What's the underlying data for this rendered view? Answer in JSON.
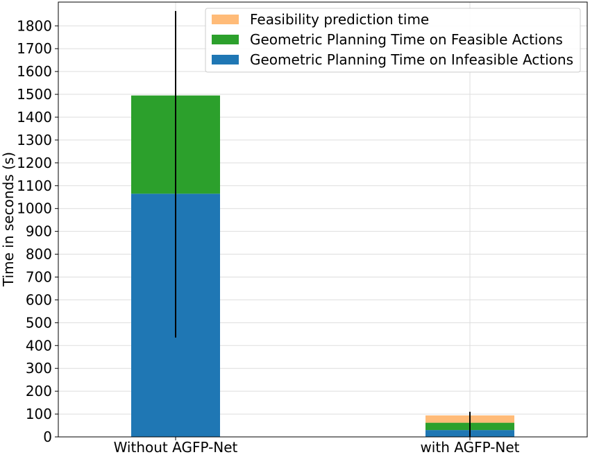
{
  "chart_data": {
    "type": "bar",
    "stacked": true,
    "categories": [
      "Without AGFP-Net",
      "with AGFP-Net"
    ],
    "series": [
      {
        "name": "Geometric Planning Time on Infeasible Actions",
        "color": "#1f77b4",
        "values": [
          1065,
          30
        ]
      },
      {
        "name": "Geometric Planning Time on Feasible Actions",
        "color": "#2ca02c",
        "values": [
          430,
          32
        ]
      },
      {
        "name": "Feasibility prediction time",
        "color": "#ffbb78",
        "values": [
          0,
          32
        ]
      }
    ],
    "error_bars": [
      {
        "category": "Without AGFP-Net",
        "low": 435,
        "high": 1865
      },
      {
        "category": "with AGFP-Net",
        "low": 0,
        "high": 110
      }
    ],
    "legend_order": [
      2,
      1,
      0
    ],
    "xlabel": "",
    "ylabel": "Time in seconds (s)",
    "ylim": [
      0,
      1900
    ],
    "yticks": [
      0,
      100,
      200,
      300,
      400,
      500,
      600,
      700,
      800,
      900,
      1000,
      1100,
      1200,
      1300,
      1400,
      1500,
      1600,
      1700,
      1800
    ],
    "grid": true,
    "legend_position": "top-right"
  }
}
